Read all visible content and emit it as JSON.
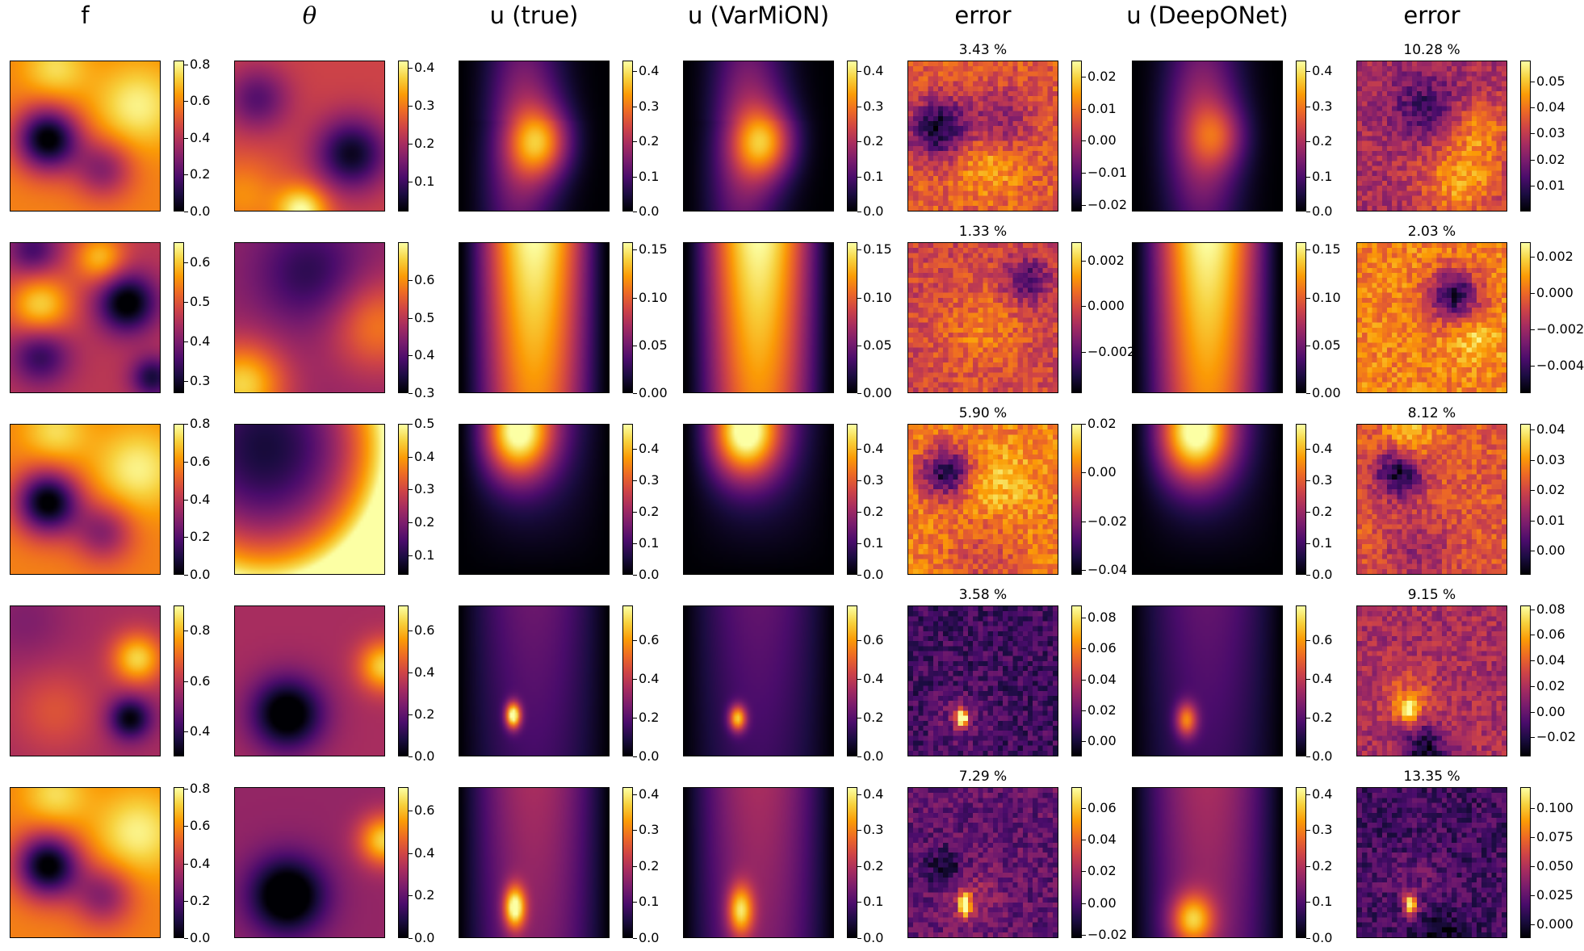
{
  "column_titles": [
    "f",
    "θ",
    "u (true)",
    "u (VarMiON)",
    "error",
    "u (DeepONet)",
    "error"
  ],
  "colormap": "inferno",
  "colormap_stops": [
    "#000004",
    "#1b0c41",
    "#4a0c6b",
    "#781c6d",
    "#a52c60",
    "#cf4446",
    "#ed6925",
    "#fb9b06",
    "#f7d13d",
    "#fcffa4"
  ],
  "chart_data": [
    {
      "type": "heatmap",
      "row": 0,
      "column": "f",
      "colorbar_ticks": [
        "0.0",
        "0.2",
        "0.4",
        "0.6",
        "0.8"
      ],
      "vmin": 0.0,
      "vmax": 0.82
    },
    {
      "type": "heatmap",
      "row": 0,
      "column": "θ",
      "colorbar_ticks": [
        "0.1",
        "0.2",
        "0.3",
        "0.4"
      ],
      "vmin": 0.02,
      "vmax": 0.42
    },
    {
      "type": "heatmap",
      "row": 0,
      "column": "u (true)",
      "colorbar_ticks": [
        "0.0",
        "0.1",
        "0.2",
        "0.3",
        "0.4"
      ],
      "vmin": 0.0,
      "vmax": 0.43
    },
    {
      "type": "heatmap",
      "row": 0,
      "column": "u (VarMiON)",
      "colorbar_ticks": [
        "0.0",
        "0.1",
        "0.2",
        "0.3",
        "0.4"
      ],
      "vmin": 0.0,
      "vmax": 0.43
    },
    {
      "type": "heatmap",
      "row": 0,
      "column": "error",
      "title": "3.43 %",
      "colorbar_ticks": [
        "−0.02",
        "−0.01",
        "0.00",
        "0.01",
        "0.02"
      ],
      "vmin": -0.022,
      "vmax": 0.025
    },
    {
      "type": "heatmap",
      "row": 0,
      "column": "u (DeepONet)",
      "colorbar_ticks": [
        "0.0",
        "0.1",
        "0.2",
        "0.3",
        "0.4"
      ],
      "vmin": 0.0,
      "vmax": 0.43
    },
    {
      "type": "heatmap",
      "row": 0,
      "column": "error",
      "title": "10.28 %",
      "colorbar_ticks": [
        "0.01",
        "0.02",
        "0.03",
        "0.04",
        "0.05"
      ],
      "vmin": 0.0,
      "vmax": 0.058
    },
    {
      "type": "heatmap",
      "row": 1,
      "column": "f",
      "colorbar_ticks": [
        "0.3",
        "0.4",
        "0.5",
        "0.6"
      ],
      "vmin": 0.27,
      "vmax": 0.65
    },
    {
      "type": "heatmap",
      "row": 1,
      "column": "θ",
      "colorbar_ticks": [
        "0.3",
        "0.4",
        "0.5",
        "0.6"
      ],
      "vmin": 0.3,
      "vmax": 0.7
    },
    {
      "type": "heatmap",
      "row": 1,
      "column": "u (true)",
      "colorbar_ticks": [
        "0.00",
        "0.05",
        "0.10",
        "0.15"
      ],
      "vmin": 0.0,
      "vmax": 0.158
    },
    {
      "type": "heatmap",
      "row": 1,
      "column": "u (VarMiON)",
      "colorbar_ticks": [
        "0.00",
        "0.05",
        "0.10",
        "0.15"
      ],
      "vmin": 0.0,
      "vmax": 0.158
    },
    {
      "type": "heatmap",
      "row": 1,
      "column": "error",
      "title": "1.33 %",
      "colorbar_ticks": [
        "−0.002",
        "0.000",
        "0.002"
      ],
      "vmin": -0.0038,
      "vmax": 0.0028
    },
    {
      "type": "heatmap",
      "row": 1,
      "column": "u (DeepONet)",
      "colorbar_ticks": [
        "0.00",
        "0.05",
        "0.10",
        "0.15"
      ],
      "vmin": 0.0,
      "vmax": 0.158
    },
    {
      "type": "heatmap",
      "row": 1,
      "column": "error",
      "title": "2.03 %",
      "colorbar_ticks": [
        "−0.004",
        "−0.002",
        "0.000",
        "0.002"
      ],
      "vmin": -0.0055,
      "vmax": 0.0028
    },
    {
      "type": "heatmap",
      "row": 2,
      "column": "f",
      "colorbar_ticks": [
        "0.0",
        "0.2",
        "0.4",
        "0.6",
        "0.8"
      ],
      "vmin": 0.0,
      "vmax": 0.8
    },
    {
      "type": "heatmap",
      "row": 2,
      "column": "θ",
      "colorbar_ticks": [
        "0.1",
        "0.2",
        "0.3",
        "0.4",
        "0.5"
      ],
      "vmin": 0.04,
      "vmax": 0.5
    },
    {
      "type": "heatmap",
      "row": 2,
      "column": "u (true)",
      "colorbar_ticks": [
        "0.0",
        "0.1",
        "0.2",
        "0.3",
        "0.4"
      ],
      "vmin": 0.0,
      "vmax": 0.48
    },
    {
      "type": "heatmap",
      "row": 2,
      "column": "u (VarMiON)",
      "colorbar_ticks": [
        "0.0",
        "0.1",
        "0.2",
        "0.3",
        "0.4"
      ],
      "vmin": 0.0,
      "vmax": 0.48
    },
    {
      "type": "heatmap",
      "row": 2,
      "column": "error",
      "title": "5.90 %",
      "colorbar_ticks": [
        "−0.04",
        "−0.02",
        "0.00",
        "0.02"
      ],
      "vmin": -0.042,
      "vmax": 0.02
    },
    {
      "type": "heatmap",
      "row": 2,
      "column": "u (DeepONet)",
      "colorbar_ticks": [
        "0.0",
        "0.1",
        "0.2",
        "0.3",
        "0.4"
      ],
      "vmin": 0.0,
      "vmax": 0.48
    },
    {
      "type": "heatmap",
      "row": 2,
      "column": "error",
      "title": "8.12 %",
      "colorbar_ticks": [
        "0.00",
        "0.01",
        "0.02",
        "0.03",
        "0.04"
      ],
      "vmin": -0.008,
      "vmax": 0.042
    },
    {
      "type": "heatmap",
      "row": 3,
      "column": "f",
      "colorbar_ticks": [
        "0.4",
        "0.6",
        "0.8"
      ],
      "vmin": 0.3,
      "vmax": 0.9
    },
    {
      "type": "heatmap",
      "row": 3,
      "column": "θ",
      "colorbar_ticks": [
        "0.0",
        "0.2",
        "0.4",
        "0.6"
      ],
      "vmin": 0.0,
      "vmax": 0.72
    },
    {
      "type": "heatmap",
      "row": 3,
      "column": "u (true)",
      "colorbar_ticks": [
        "0.0",
        "0.2",
        "0.4",
        "0.6"
      ],
      "vmin": 0.0,
      "vmax": 0.78
    },
    {
      "type": "heatmap",
      "row": 3,
      "column": "u (VarMiON)",
      "colorbar_ticks": [
        "0.0",
        "0.2",
        "0.4",
        "0.6"
      ],
      "vmin": 0.0,
      "vmax": 0.78
    },
    {
      "type": "heatmap",
      "row": 3,
      "column": "error",
      "title": "3.58 %",
      "colorbar_ticks": [
        "0.00",
        "0.02",
        "0.04",
        "0.06",
        "0.08"
      ],
      "vmin": -0.01,
      "vmax": 0.088
    },
    {
      "type": "heatmap",
      "row": 3,
      "column": "u (DeepONet)",
      "colorbar_ticks": [
        "0.0",
        "0.2",
        "0.4",
        "0.6"
      ],
      "vmin": 0.0,
      "vmax": 0.78
    },
    {
      "type": "heatmap",
      "row": 3,
      "column": "error",
      "title": "9.15 %",
      "colorbar_ticks": [
        "−0.02",
        "0.00",
        "0.02",
        "0.04",
        "0.06",
        "0.08"
      ],
      "vmin": -0.035,
      "vmax": 0.083
    },
    {
      "type": "heatmap",
      "row": 4,
      "column": "f",
      "colorbar_ticks": [
        "0.0",
        "0.2",
        "0.4",
        "0.6",
        "0.8"
      ],
      "vmin": 0.0,
      "vmax": 0.81
    },
    {
      "type": "heatmap",
      "row": 4,
      "column": "θ",
      "colorbar_ticks": [
        "0.0",
        "0.2",
        "0.4",
        "0.6"
      ],
      "vmin": 0.0,
      "vmax": 0.71
    },
    {
      "type": "heatmap",
      "row": 4,
      "column": "u (true)",
      "colorbar_ticks": [
        "0.0",
        "0.1",
        "0.2",
        "0.3",
        "0.4"
      ],
      "vmin": 0.0,
      "vmax": 0.42
    },
    {
      "type": "heatmap",
      "row": 4,
      "column": "u (VarMiON)",
      "colorbar_ticks": [
        "0.0",
        "0.1",
        "0.2",
        "0.3",
        "0.4"
      ],
      "vmin": 0.0,
      "vmax": 0.42
    },
    {
      "type": "heatmap",
      "row": 4,
      "column": "error",
      "title": "7.29 %",
      "colorbar_ticks": [
        "−0.02",
        "0.00",
        "0.02",
        "0.04",
        "0.06"
      ],
      "vmin": -0.022,
      "vmax": 0.073
    },
    {
      "type": "heatmap",
      "row": 4,
      "column": "u (DeepONet)",
      "colorbar_ticks": [
        "0.0",
        "0.1",
        "0.2",
        "0.3",
        "0.4"
      ],
      "vmin": 0.0,
      "vmax": 0.42
    },
    {
      "type": "heatmap",
      "row": 4,
      "column": "error",
      "title": "13.35 %",
      "colorbar_ticks": [
        "0.000",
        "0.025",
        "0.050",
        "0.075",
        "0.100"
      ],
      "vmin": -0.012,
      "vmax": 0.118
    }
  ]
}
